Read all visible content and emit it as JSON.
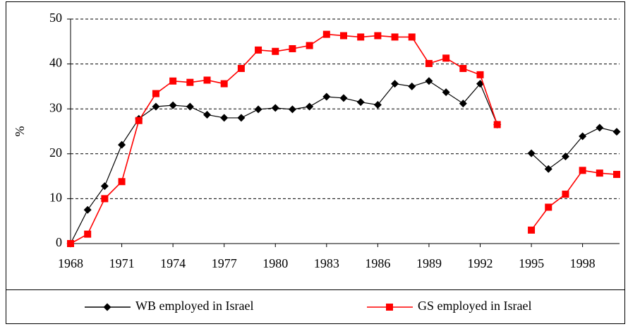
{
  "chart_data": {
    "type": "line",
    "ylabel": "%",
    "x": [
      1968,
      1969,
      1970,
      1971,
      1972,
      1973,
      1974,
      1975,
      1976,
      1977,
      1978,
      1979,
      1980,
      1981,
      1982,
      1983,
      1984,
      1985,
      1986,
      1987,
      1988,
      1989,
      1990,
      1991,
      1992,
      1993,
      1994,
      1995,
      1996,
      1997,
      1998,
      1999,
      2000
    ],
    "series": [
      {
        "name": "WB employed in Israel",
        "color": "#000000",
        "marker": "diamond",
        "values": [
          0,
          7.5,
          12.8,
          22,
          27.8,
          30.5,
          30.8,
          30.5,
          28.7,
          28,
          28,
          29.9,
          30.2,
          29.9,
          30.5,
          32.7,
          32.4,
          31.5,
          30.9,
          35.6,
          35,
          36.2,
          33.7,
          31.2,
          35.6,
          26.5,
          null,
          20.1,
          16.6,
          19.4,
          23.9,
          25.8,
          24.9
        ]
      },
      {
        "name": "GS employed in Israel",
        "color": "#ff0000",
        "marker": "square",
        "values": [
          0,
          2.1,
          10,
          13.8,
          27.4,
          33.4,
          36.2,
          35.9,
          36.4,
          35.6,
          39,
          43.1,
          42.8,
          43.4,
          44.1,
          46.6,
          46.3,
          46,
          46.3,
          46,
          46,
          40.1,
          41.3,
          39,
          37.6,
          26.5,
          null,
          3,
          8.1,
          11,
          16.3,
          15.7,
          15.4
        ]
      }
    ],
    "xlim": [
      1968,
      2000
    ],
    "xticks": [
      1968,
      1971,
      1974,
      1977,
      1980,
      1983,
      1986,
      1989,
      1992,
      1995,
      1998
    ],
    "ylim": [
      0,
      50
    ],
    "yticks": [
      0,
      10,
      20,
      30,
      40,
      50
    ],
    "grid": true,
    "legend": "bottom"
  }
}
